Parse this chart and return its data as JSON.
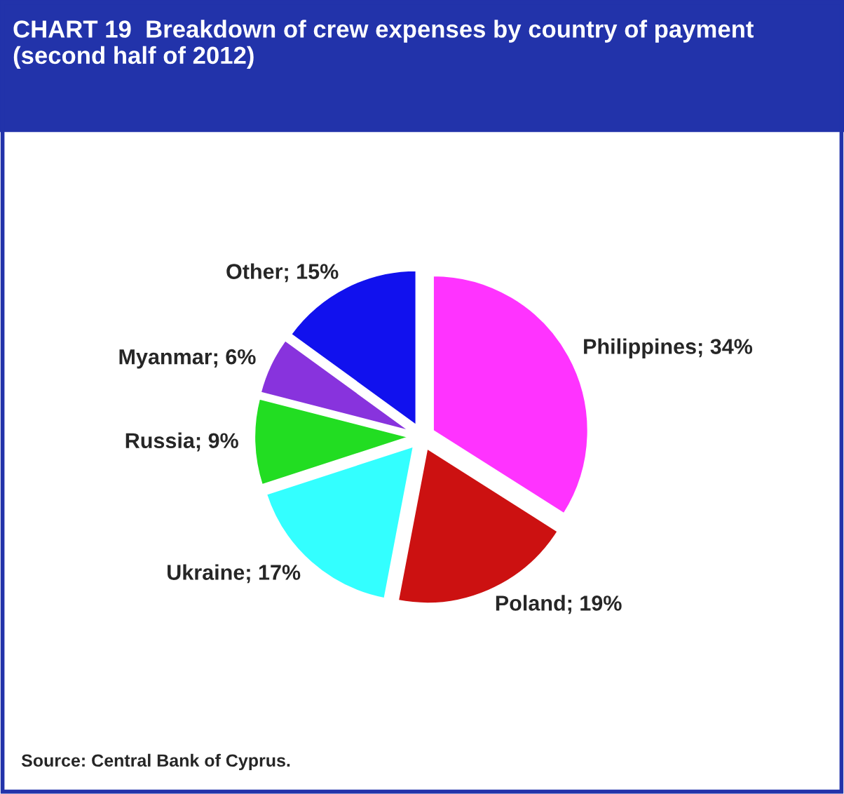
{
  "chart_data": {
    "type": "pie",
    "title": "CHART 19  Breakdown of crew expenses by country of payment\n(second half of 2012)",
    "categories": [
      "Philippines",
      "Poland",
      "Ukraine",
      "Russia",
      "Myanmar",
      "Other"
    ],
    "values": [
      34,
      19,
      17,
      9,
      6,
      15
    ],
    "value_labels": [
      "34%",
      "19%",
      "17%",
      "9%",
      "6%",
      "15%"
    ],
    "colors": [
      "#ff33ff",
      "#cc1111",
      "#33ffff",
      "#22dd22",
      "#8833dd",
      "#1111ee"
    ],
    "annotations": [
      "Source: Central Bank of Cyprus."
    ],
    "legend": false
  }
}
